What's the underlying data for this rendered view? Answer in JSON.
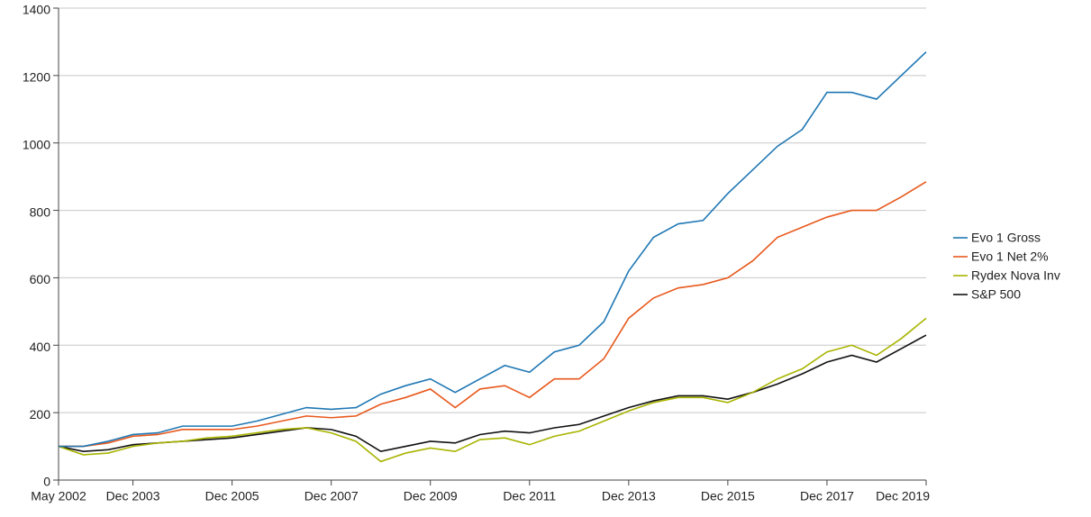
{
  "chart_data": {
    "type": "line",
    "categories": [
      "May 2002",
      null,
      null,
      "Dec 2003",
      null,
      null,
      null,
      "Dec 2005",
      null,
      null,
      null,
      "Dec 2007",
      null,
      null,
      null,
      "Dec 2009",
      null,
      null,
      null,
      "Dec 2011",
      null,
      null,
      null,
      "Dec 2013",
      null,
      null,
      null,
      "Dec 2015",
      null,
      null,
      null,
      "Dec 2017",
      null,
      null,
      null,
      "Dec 2019"
    ],
    "series": [
      {
        "name": "Evo 1 Gross",
        "color": "#1f77b4",
        "values": [
          100,
          100,
          115,
          135,
          140,
          160,
          160,
          160,
          175,
          195,
          215,
          210,
          215,
          255,
          280,
          300,
          260,
          300,
          340,
          320,
          380,
          400,
          470,
          620,
          720,
          760,
          770,
          850,
          920,
          990,
          1040,
          1150,
          1150,
          1130,
          1200,
          1270
        ]
      },
      {
        "name": "Evo 1 Net 2%",
        "color": "#e8581c",
        "values": [
          100,
          100,
          110,
          130,
          135,
          150,
          150,
          150,
          160,
          175,
          190,
          185,
          190,
          225,
          245,
          270,
          215,
          270,
          280,
          245,
          300,
          300,
          360,
          480,
          540,
          570,
          580,
          600,
          650,
          720,
          750,
          780,
          800,
          800,
          840,
          885
        ]
      },
      {
        "name": "Rydex Nova Inv",
        "color": "#a8b400",
        "values": [
          100,
          75,
          80,
          100,
          110,
          115,
          125,
          130,
          140,
          150,
          155,
          140,
          115,
          55,
          80,
          95,
          85,
          120,
          125,
          105,
          130,
          145,
          175,
          205,
          230,
          245,
          245,
          230,
          260,
          300,
          330,
          380,
          400,
          370,
          420,
          480
        ]
      },
      {
        "name": "S&P 500",
        "color": "#111111",
        "values": [
          100,
          85,
          90,
          105,
          110,
          115,
          120,
          125,
          135,
          145,
          155,
          150,
          130,
          85,
          100,
          115,
          110,
          135,
          145,
          140,
          155,
          165,
          190,
          215,
          235,
          250,
          250,
          240,
          260,
          285,
          315,
          350,
          370,
          350,
          390,
          430
        ]
      }
    ],
    "ylim": [
      0,
      1400
    ],
    "yticks": [
      0,
      200,
      400,
      600,
      800,
      1000,
      1200,
      1400
    ],
    "grid": true,
    "legend": "right"
  }
}
